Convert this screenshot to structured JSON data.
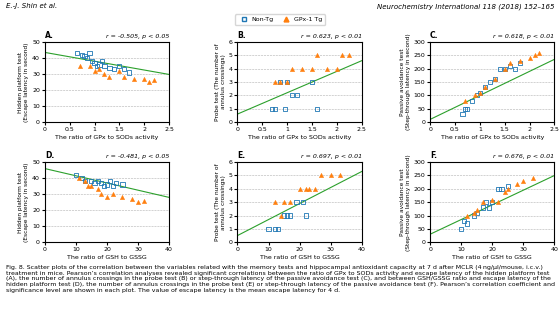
{
  "annotations": [
    "E.-J. Shin et al.",
    "Neurochemistry International 118 (2018) 152–165",
    "Fig. 8. Scatter plots of the correlation between the variables related with the memory tests and hippocampal antioxidant capacity at 7 d after MCLR (4 ng/μl/mouse, i.c.v.) treatment in mice. Pearson’s correlation analyses revealed significant correlations between the ratio of GPx to SODs activity and escape latency of the hidden platform test (A), the number of annulus crossings in the probe test (B) or step-through latency of the passive avoidance test (C), and between GSH/GSSG ratio and escape latency of the hidden platform test (D), the number of annulus crossings in the probe test (E) or step-through latency of the passive avoidance test (F). Pearson’s correlation coefficient and significance level are shown in each plot. The value of escape latency is the mean escape latency for 4 d."
  ],
  "legend": "upper center",
  "chart_data": [
    {
      "type": "scatter",
      "title": "A.",
      "annotations": [
        "r = -0.505, p < 0.05"
      ],
      "xlabel": "The ratio of GPx to SODs activity",
      "ylabel": "Hidden platform test\n(Escape latency in second)",
      "xlim": [
        0,
        2.5
      ],
      "ylim": [
        0,
        50
      ],
      "xticks": [
        0,
        0.5,
        1,
        1.5,
        2,
        2.5
      ],
      "yticks": [
        0,
        10,
        20,
        30,
        40,
        50
      ],
      "grid": "y",
      "series": [
        {
          "name": "Non-Tg",
          "type": "scatter",
          "marker": "open square",
          "x": [
            0.65,
            0.75,
            0.8,
            0.85,
            0.9,
            0.95,
            1.0,
            1.05,
            1.1,
            1.15,
            1.2,
            1.3,
            1.4,
            1.5,
            1.6,
            1.7
          ],
          "values": [
            43,
            42,
            41,
            40,
            43,
            38,
            37,
            35,
            36,
            38,
            35,
            34,
            33,
            35,
            33,
            31
          ]
        },
        {
          "name": "GPx-1 Tg",
          "type": "scatter",
          "marker": "triangle",
          "x": [
            0.7,
            0.9,
            1.0,
            1.1,
            1.2,
            1.3,
            1.5,
            1.6,
            1.8,
            2.0,
            2.1,
            2.2
          ],
          "values": [
            35,
            35,
            32,
            33,
            30,
            28,
            32,
            28,
            27,
            27,
            25,
            26
          ]
        },
        {
          "type": "line",
          "x": [
            0,
            2.5
          ],
          "values": [
            43.5,
            29.75
          ]
        }
      ]
    },
    {
      "type": "scatter",
      "title": "B.",
      "annotations": [
        "r = 0.623, p < 0.01"
      ],
      "xlabel": "The ratio of GPx to SODs activity",
      "ylabel": "Probe test (The number of\nannulus crossings)",
      "xlim": [
        0,
        2.5
      ],
      "ylim": [
        0,
        6
      ],
      "xticks": [
        0,
        0.5,
        1,
        1.5,
        2,
        2.5
      ],
      "yticks": [
        0,
        1,
        2,
        3,
        4,
        5,
        6
      ],
      "grid": "y",
      "series": [
        {
          "name": "Non-Tg",
          "type": "scatter",
          "marker": "open square",
          "x": [
            0.7,
            0.75,
            0.85,
            0.95,
            1.0,
            1.1,
            1.2,
            1.5,
            1.6
          ],
          "values": [
            1,
            1,
            3,
            1,
            3,
            2,
            2,
            3,
            1
          ]
        },
        {
          "name": "GPx-1 Tg",
          "type": "scatter",
          "marker": "triangle",
          "x": [
            0.75,
            0.85,
            1.0,
            1.1,
            1.3,
            1.5,
            1.6,
            1.8,
            2.0,
            2.1,
            2.25
          ],
          "values": [
            3,
            3,
            3,
            4,
            4,
            4,
            5,
            4,
            4,
            5,
            5
          ]
        },
        {
          "type": "line",
          "x": [
            0,
            2.5
          ],
          "values": [
            0.6,
            4.6
          ]
        }
      ]
    },
    {
      "type": "scatter",
      "title": "C.",
      "annotations": [
        "r = 0.618, p < 0.01"
      ],
      "xlabel": "The ratio of GPx to SODs activity",
      "ylabel": "Passive avoidance test\n(Step-through latency in second)",
      "xlim": [
        0,
        2.5
      ],
      "ylim": [
        0,
        300
      ],
      "xticks": [
        0,
        0.5,
        1,
        1.5,
        2,
        2.5
      ],
      "yticks": [
        0,
        50,
        100,
        150,
        200,
        250,
        300
      ],
      "grid": "y",
      "series": [
        {
          "name": "Non-Tg",
          "type": "scatter",
          "marker": "open square",
          "x": [
            0.65,
            0.7,
            0.75,
            0.85,
            0.95,
            1.0,
            1.1,
            1.2,
            1.3,
            1.4,
            1.5,
            1.6,
            1.7,
            1.8
          ],
          "values": [
            30,
            50,
            50,
            80,
            100,
            110,
            130,
            150,
            160,
            200,
            200,
            210,
            200,
            220
          ]
        },
        {
          "name": "GPx-1 Tg",
          "type": "scatter",
          "marker": "triangle",
          "x": [
            0.7,
            0.9,
            1.0,
            1.1,
            1.3,
            1.5,
            1.6,
            1.8,
            2.0,
            2.1,
            2.2
          ],
          "values": [
            80,
            100,
            110,
            130,
            160,
            200,
            220,
            230,
            240,
            250,
            260
          ]
        },
        {
          "type": "line",
          "x": [
            0,
            2.5
          ],
          "values": [
            10,
            235
          ]
        }
      ]
    },
    {
      "type": "scatter",
      "title": "D.",
      "annotations": [
        "r = -0.481, p < 0.05"
      ],
      "xlabel": "The ratio of GSH to GSSG",
      "ylabel": "Hidden platform test\n(Escape latency in second)",
      "xlim": [
        0,
        40
      ],
      "ylim": [
        0,
        50
      ],
      "xticks": [
        0,
        10,
        20,
        30,
        40
      ],
      "yticks": [
        0,
        10,
        20,
        30,
        40,
        50
      ],
      "grid": "y",
      "series": [
        {
          "name": "Non-Tg",
          "type": "scatter",
          "marker": "open square",
          "x": [
            10,
            12,
            13,
            15,
            16,
            17,
            18,
            19,
            20,
            21,
            22,
            23,
            25
          ],
          "values": [
            42,
            40,
            38,
            38,
            37,
            38,
            37,
            35,
            36,
            38,
            35,
            37,
            36
          ]
        },
        {
          "name": "GPx-1 Tg",
          "type": "scatter",
          "marker": "triangle",
          "x": [
            11,
            13,
            14,
            15,
            17,
            18,
            20,
            22,
            25,
            28,
            30,
            32
          ],
          "values": [
            40,
            38,
            35,
            35,
            33,
            30,
            28,
            30,
            28,
            27,
            25,
            26
          ]
        },
        {
          "type": "line",
          "x": [
            0,
            40
          ],
          "values": [
            46,
            28
          ]
        }
      ]
    },
    {
      "type": "scatter",
      "title": "E.",
      "annotations": [
        "r = 0.697, p < 0.01"
      ],
      "xlabel": "The ratio of GSH to GSSG",
      "ylabel": "Probe test (The number of\nannulus crossings)",
      "xlim": [
        0,
        40
      ],
      "ylim": [
        0,
        6
      ],
      "xticks": [
        0,
        10,
        20,
        30,
        40
      ],
      "yticks": [
        0,
        1,
        2,
        3,
        4,
        5,
        6
      ],
      "grid": "y",
      "series": [
        {
          "name": "Non-Tg",
          "type": "scatter",
          "marker": "open square",
          "x": [
            10,
            12,
            13,
            15,
            16,
            17,
            19,
            21,
            22
          ],
          "values": [
            1,
            1,
            1,
            2,
            2,
            2,
            3,
            3,
            2
          ]
        },
        {
          "name": "GPx-1 Tg",
          "type": "scatter",
          "marker": "triangle",
          "x": [
            12,
            14,
            15,
            17,
            20,
            22,
            23,
            25,
            27,
            30,
            33
          ],
          "values": [
            3,
            2,
            3,
            3,
            4,
            4,
            4,
            4,
            5,
            5,
            5
          ]
        },
        {
          "type": "line",
          "x": [
            0,
            40
          ],
          "values": [
            0.5,
            5.3
          ]
        }
      ]
    },
    {
      "type": "scatter",
      "title": "F.",
      "annotations": [
        "r = 0.676, p < 0.01"
      ],
      "xlabel": "The ratio of GSH to GSSG",
      "ylabel": "Passive avoidance test\n(Step-through latency in second)",
      "xlim": [
        0,
        40
      ],
      "ylim": [
        0,
        300
      ],
      "xticks": [
        0,
        10,
        20,
        30,
        40
      ],
      "yticks": [
        0,
        50,
        100,
        150,
        200,
        250,
        300
      ],
      "grid": "y",
      "series": [
        {
          "name": "Non-Tg",
          "type": "scatter",
          "marker": "open square",
          "x": [
            10,
            11,
            12,
            14,
            15,
            17,
            18,
            19,
            20,
            22,
            23,
            25
          ],
          "values": [
            50,
            80,
            70,
            100,
            110,
            130,
            150,
            130,
            150,
            200,
            200,
            210
          ]
        },
        {
          "name": "GPx-1 Tg",
          "type": "scatter",
          "marker": "triangle",
          "x": [
            12,
            14,
            15,
            17,
            20,
            22,
            24,
            25,
            28,
            30,
            33
          ],
          "values": [
            100,
            110,
            120,
            150,
            160,
            150,
            190,
            200,
            220,
            230,
            240
          ]
        },
        {
          "type": "line",
          "x": [
            0,
            40
          ],
          "values": [
            30,
            250
          ]
        }
      ]
    }
  ]
}
